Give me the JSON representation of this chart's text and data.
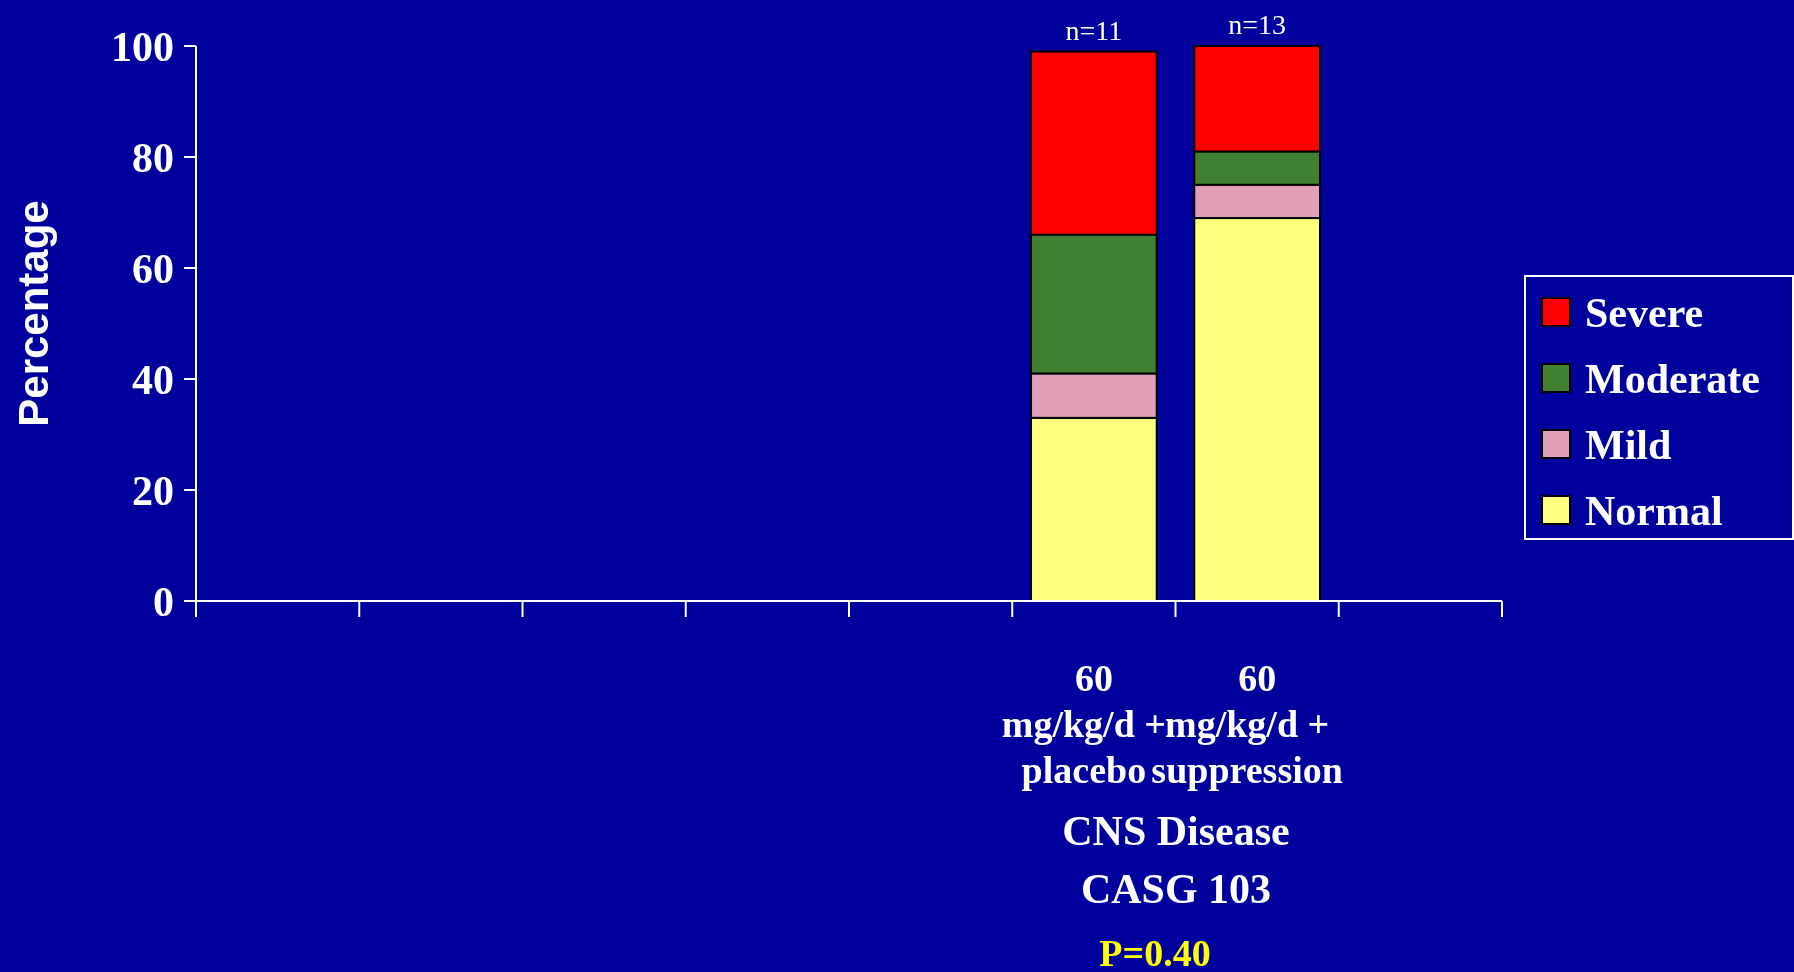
{
  "chart_data": {
    "type": "bar",
    "stacked": true,
    "categories": [
      null,
      null,
      null,
      null,
      null,
      "60\nmg/kg/d +\nplacebo",
      "60\nmg/kg/d +\nsuppression",
      null
    ],
    "series": [
      {
        "name": "Normal",
        "color": "#ffff80",
        "values": [
          null,
          null,
          null,
          null,
          null,
          33,
          69,
          null
        ]
      },
      {
        "name": "Mild",
        "color": "#e0a0b8",
        "values": [
          null,
          null,
          null,
          null,
          null,
          8,
          6,
          null
        ]
      },
      {
        "name": "Moderate",
        "color": "#408030",
        "values": [
          null,
          null,
          null,
          null,
          null,
          25,
          6,
          null
        ]
      },
      {
        "name": "Severe",
        "color": "#ff0000",
        "values": [
          null,
          null,
          null,
          null,
          null,
          33,
          19,
          null
        ]
      }
    ],
    "ylabel": "Percentage",
    "xlabel": "CNS Disease\nCASG 103",
    "ylim": [
      0,
      100
    ],
    "yticks": [
      0,
      20,
      40,
      60,
      80,
      100
    ],
    "annotations": [
      {
        "text": "n=11",
        "x": "60\nmg/kg/d +\nplacebo",
        "y": 99
      },
      {
        "text": "n=13",
        "x": "60\nmg/kg/d +\nsuppression",
        "y": 100
      },
      "P=0.40"
    ],
    "legend": "right",
    "grid": false
  }
}
